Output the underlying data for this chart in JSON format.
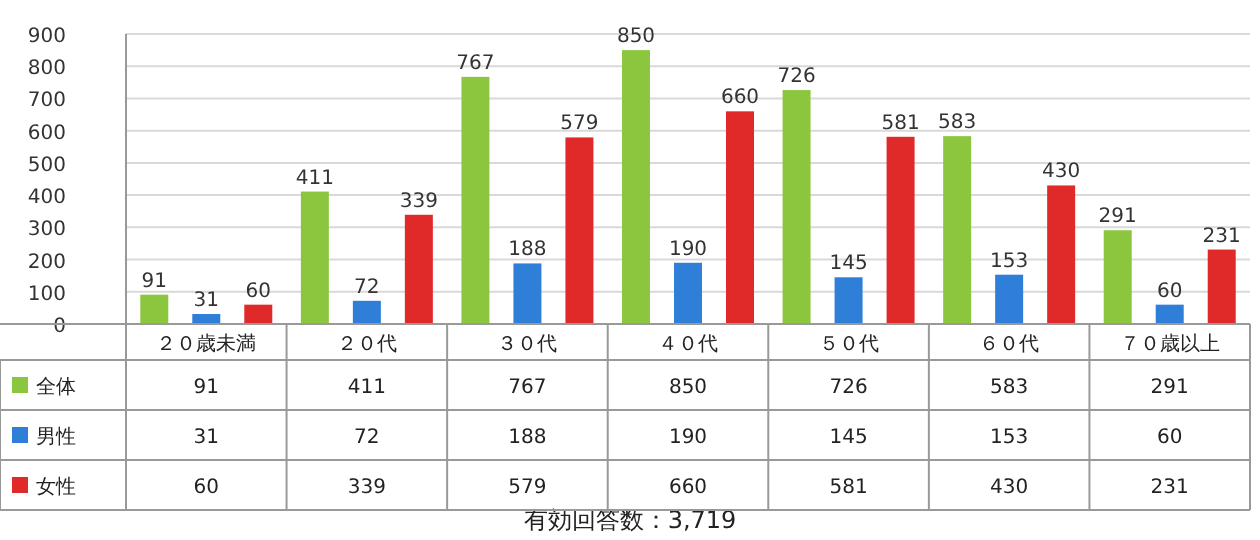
{
  "chart_data": [
    {
      "type": "bar",
      "categories": [
        null,
        null,
        null,
        null,
        null,
        null,
        null
      ],
      "series": [
        {
          "color": "#8cc63e",
          "values": [
            91,
            411,
            767,
            850,
            726,
            583,
            291
          ],
          "value_labels": [
            "91",
            "411",
            "767",
            "850",
            "726",
            "583",
            "291"
          ]
        },
        {
          "color": "#2f7fd8",
          "values": [
            31,
            72,
            188,
            190,
            145,
            153,
            60
          ],
          "value_labels": [
            "31",
            "72",
            "188",
            "190",
            "145",
            "153",
            "60"
          ]
        },
        {
          "color": "#e02a2a",
          "values": [
            60,
            339,
            579,
            660,
            581,
            430,
            231
          ],
          "value_labels": [
            "60",
            "339",
            "579",
            "660",
            "581",
            "430",
            "231"
          ]
        }
      ],
      "ylim": [
        0,
        900
      ],
      "yticks": [
        0,
        100,
        200,
        300,
        400,
        500,
        600,
        700,
        800,
        900
      ],
      "grid": "y",
      "annotations": [
        "有効回答数：3,719"
      ]
    },
    {
      "type": "heatmap",
      "categories": [
        "２０歳未満",
        "２０代",
        "３０代",
        "４０代",
        "５０代",
        "６０代",
        "７０歳以上"
      ],
      "y_categories": [
        "全体",
        "男性",
        "女性"
      ],
      "colors": [
        "#8cc63e",
        "#2f7fd8",
        "#e02a2a"
      ],
      "cells": [
        [
          91,
          411,
          767,
          850,
          726,
          583,
          291
        ],
        [
          31,
          72,
          188,
          190,
          145,
          153,
          60
        ],
        [
          60,
          339,
          579,
          660,
          581,
          430,
          231
        ]
      ],
      "data_labels": true
    }
  ]
}
